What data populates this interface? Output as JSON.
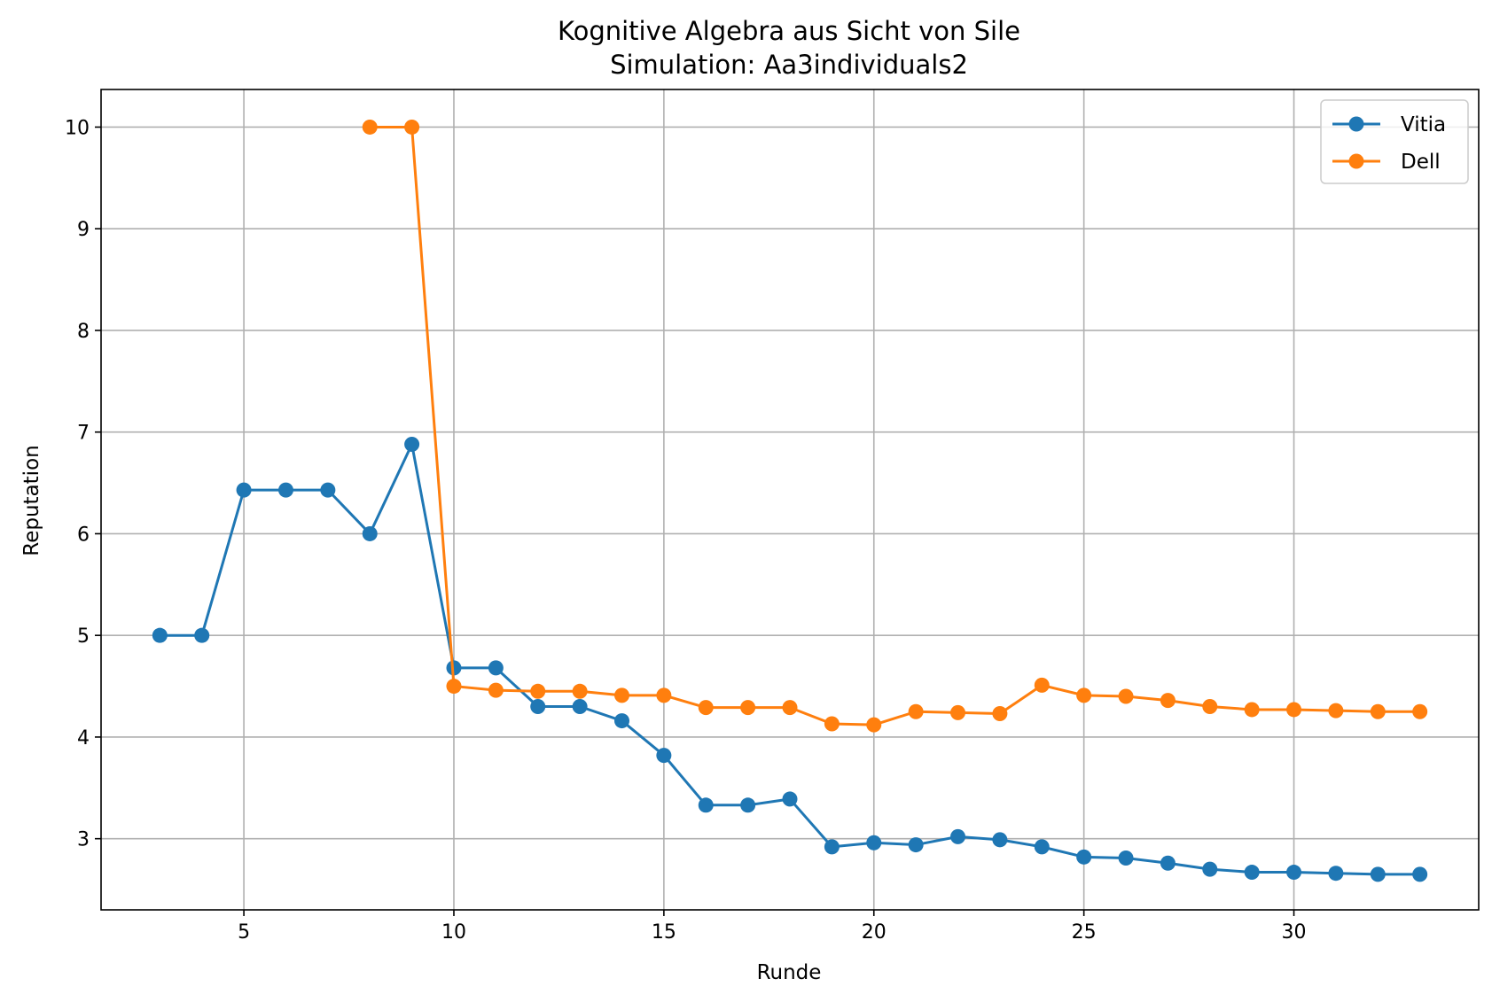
{
  "chart_data": {
    "type": "line",
    "title": "Kognitive Algebra aus Sicht von Sile",
    "subtitle": "Simulation: Aa3individuals2",
    "xlabel": "Runde",
    "ylabel": "Reputation",
    "xlim": [
      1.6,
      34.4
    ],
    "ylim": [
      2.3,
      10.37
    ],
    "xticks": [
      5,
      10,
      15,
      20,
      25,
      30
    ],
    "yticks": [
      3,
      4,
      5,
      6,
      7,
      8,
      9,
      10
    ],
    "grid": true,
    "legend_position": "top-right",
    "series": [
      {
        "name": "Vitia",
        "color": "#1f77b4",
        "x": [
          3,
          4,
          5,
          6,
          7,
          8,
          9,
          10,
          11,
          12,
          13,
          14,
          15,
          16,
          17,
          18,
          19,
          20,
          21,
          22,
          23,
          24,
          25,
          26,
          27,
          28,
          29,
          30,
          31,
          32,
          33
        ],
        "y": [
          5.0,
          5.0,
          6.43,
          6.43,
          6.43,
          6.0,
          6.88,
          4.68,
          4.68,
          4.3,
          4.3,
          4.16,
          3.82,
          3.33,
          3.33,
          3.39,
          2.92,
          2.96,
          2.94,
          3.02,
          2.99,
          2.92,
          2.82,
          2.81,
          2.76,
          2.7,
          2.67,
          2.67,
          2.66,
          2.65,
          2.65
        ]
      },
      {
        "name": "Dell",
        "color": "#ff7f0e",
        "x": [
          8,
          9,
          10,
          11,
          12,
          13,
          14,
          15,
          16,
          17,
          18,
          19,
          20,
          21,
          22,
          23,
          24,
          25,
          26,
          27,
          28,
          29,
          30,
          31,
          32,
          33
        ],
        "y": [
          10.0,
          10.0,
          4.5,
          4.46,
          4.45,
          4.45,
          4.41,
          4.41,
          4.29,
          4.29,
          4.29,
          4.13,
          4.12,
          4.25,
          4.24,
          4.23,
          4.51,
          4.41,
          4.4,
          4.36,
          4.3,
          4.27,
          4.27,
          4.26,
          4.25,
          4.25
        ]
      }
    ]
  }
}
